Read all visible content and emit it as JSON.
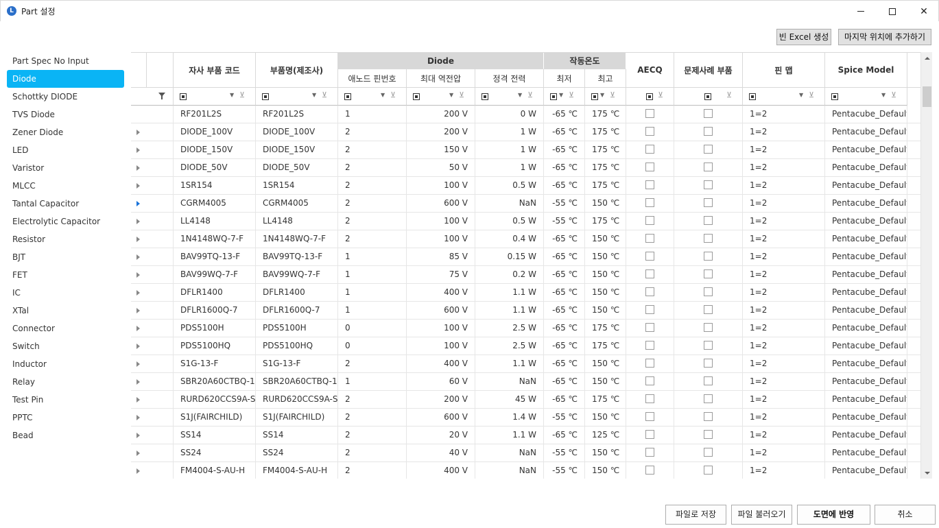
{
  "window": {
    "title": "Part 설정",
    "icon_letter": "L"
  },
  "toolbar": {
    "excel_label": "빈 Excel 생성",
    "add_last_label": "마지막 위치에 추가하기"
  },
  "sidebar": {
    "items": [
      "Part Spec No Input",
      "Diode",
      "Schottky DIODE",
      "TVS Diode",
      "Zener Diode",
      "LED",
      "Varistor",
      "MLCC",
      "Tantal Capacitor",
      "Electrolytic Capacitor",
      "Resistor",
      "BJT",
      "FET",
      "IC",
      "XTal",
      "Connector",
      "Switch",
      "Inductor",
      "Relay",
      "Test Pin",
      "PPTC",
      "Bead"
    ],
    "active": "Diode"
  },
  "grid": {
    "headers": {
      "code": "자사 부품 코드",
      "name": "부품명(제조사)",
      "group_diode": "Diode",
      "anode_pin": "애노드 핀번호",
      "max_rev_v": "최대 역전압",
      "rated_power": "정격 전력",
      "group_temp": "작동온도",
      "temp_min": "최저",
      "temp_max": "최고",
      "aecq": "AECQ",
      "problem": "문제사례 부품",
      "pinmap": "핀 맵",
      "spice": "Spice Model"
    },
    "rows": [
      {
        "code": "RF201L2S",
        "name": "RF201L2S",
        "anode": "1",
        "vr": "200 V",
        "pw": "0 W",
        "tmin": "-65 ℃",
        "tmax": "175 ℃",
        "pin": "1=2",
        "spice": "Pentacube_Default_"
      },
      {
        "code": "DIODE_100V",
        "name": "DIODE_100V",
        "anode": "2",
        "vr": "200 V",
        "pw": "1 W",
        "tmin": "-65 ℃",
        "tmax": "175 ℃",
        "pin": "1=2",
        "spice": "Pentacube_Default_"
      },
      {
        "code": "DIODE_150V",
        "name": "DIODE_150V",
        "anode": "2",
        "vr": "150 V",
        "pw": "1 W",
        "tmin": "-65 ℃",
        "tmax": "175 ℃",
        "pin": "1=2",
        "spice": "Pentacube_Default_"
      },
      {
        "code": "DIODE_50V",
        "name": "DIODE_50V",
        "anode": "2",
        "vr": "50 V",
        "pw": "1 W",
        "tmin": "-65 ℃",
        "tmax": "175 ℃",
        "pin": "1=2",
        "spice": "Pentacube_Default_"
      },
      {
        "code": "1SR154",
        "name": "1SR154",
        "anode": "2",
        "vr": "100 V",
        "pw": "0.5 W",
        "tmin": "-65 ℃",
        "tmax": "175 ℃",
        "pin": "1=2",
        "spice": "Pentacube_Default_"
      },
      {
        "code": "CGRM4005",
        "name": "CGRM4005",
        "anode": "2",
        "vr": "600 V",
        "pw": "NaN",
        "tmin": "-55 ℃",
        "tmax": "150 ℃",
        "pin": "1=2",
        "spice": "Pentacube_Default_"
      },
      {
        "code": "LL4148",
        "name": "LL4148",
        "anode": "2",
        "vr": "100 V",
        "pw": "0.5 W",
        "tmin": "-55 ℃",
        "tmax": "175 ℃",
        "pin": "1=2",
        "spice": "Pentacube_Default_"
      },
      {
        "code": "1N4148WQ-7-F",
        "name": "1N4148WQ-7-F",
        "anode": "2",
        "vr": "100 V",
        "pw": "0.4 W",
        "tmin": "-65 ℃",
        "tmax": "150 ℃",
        "pin": "1=2",
        "spice": "Pentacube_Default_"
      },
      {
        "code": "BAV99TQ-13-F",
        "name": "BAV99TQ-13-F",
        "anode": "1",
        "vr": "85 V",
        "pw": "0.15 W",
        "tmin": "-65 ℃",
        "tmax": "150 ℃",
        "pin": "1=2",
        "spice": "Pentacube_Default_"
      },
      {
        "code": "BAV99WQ-7-F",
        "name": "BAV99WQ-7-F",
        "anode": "1",
        "vr": "75 V",
        "pw": "0.2 W",
        "tmin": "-65 ℃",
        "tmax": "150 ℃",
        "pin": "1=2",
        "spice": "Pentacube_Default_"
      },
      {
        "code": "DFLR1400",
        "name": "DFLR1400",
        "anode": "1",
        "vr": "400 V",
        "pw": "1.1 W",
        "tmin": "-65 ℃",
        "tmax": "150 ℃",
        "pin": "1=2",
        "spice": "Pentacube_Default_"
      },
      {
        "code": "DFLR1600Q-7",
        "name": "DFLR1600Q-7",
        "anode": "1",
        "vr": "600 V",
        "pw": "1.1 W",
        "tmin": "-65 ℃",
        "tmax": "150 ℃",
        "pin": "1=2",
        "spice": "Pentacube_Default_"
      },
      {
        "code": "PDS5100H",
        "name": "PDS5100H",
        "anode": "0",
        "vr": "100 V",
        "pw": "2.5 W",
        "tmin": "-65 ℃",
        "tmax": "175 ℃",
        "pin": "1=2",
        "spice": "Pentacube_Default_"
      },
      {
        "code": "PDS5100HQ",
        "name": "PDS5100HQ",
        "anode": "0",
        "vr": "100 V",
        "pw": "2.5 W",
        "tmin": "-65 ℃",
        "tmax": "175 ℃",
        "pin": "1=2",
        "spice": "Pentacube_Default_"
      },
      {
        "code": "S1G-13-F",
        "name": "S1G-13-F",
        "anode": "2",
        "vr": "400 V",
        "pw": "1.1 W",
        "tmin": "-65 ℃",
        "tmax": "150 ℃",
        "pin": "1=2",
        "spice": "Pentacube_Default_"
      },
      {
        "code": "SBR20A60CTBQ-13",
        "name": "SBR20A60CTBQ-13",
        "anode": "1",
        "vr": "60 V",
        "pw": "NaN",
        "tmin": "-65 ℃",
        "tmax": "150 ℃",
        "pin": "1=2",
        "spice": "Pentacube_Default_"
      },
      {
        "code": "RURD620CCS9A-SE",
        "name": "RURD620CCS9A-SE",
        "anode": "2",
        "vr": "200 V",
        "pw": "45 W",
        "tmin": "-65 ℃",
        "tmax": "175 ℃",
        "pin": "1=2",
        "spice": "Pentacube_Default_"
      },
      {
        "code": "S1J(FAIRCHILD)",
        "name": "S1J(FAIRCHILD)",
        "anode": "2",
        "vr": "600 V",
        "pw": "1.4 W",
        "tmin": "-55 ℃",
        "tmax": "150 ℃",
        "pin": "1=2",
        "spice": "Pentacube_Default_"
      },
      {
        "code": "SS14",
        "name": "SS14",
        "anode": "2",
        "vr": "20 V",
        "pw": "1.1 W",
        "tmin": "-65 ℃",
        "tmax": "125 ℃",
        "pin": "1=2",
        "spice": "Pentacube_Default_"
      },
      {
        "code": "SS24",
        "name": "SS24",
        "anode": "2",
        "vr": "40 V",
        "pw": "NaN",
        "tmin": "-55 ℃",
        "tmax": "150 ℃",
        "pin": "1=2",
        "spice": "Pentacube_Default_"
      },
      {
        "code": "FM4004-S-AU-H",
        "name": "FM4004-S-AU-H",
        "anode": "2",
        "vr": "400 V",
        "pw": "NaN",
        "tmin": "-55 ℃",
        "tmax": "150 ℃",
        "pin": "1=2",
        "spice": "Pentacube_Default_"
      }
    ]
  },
  "footer": {
    "save_label": "파일로 저장",
    "load_label": "파일 불러오기",
    "apply_label": "도면에 반영",
    "cancel_label": "취소"
  },
  "colors": {
    "accent": "#0ab4f5",
    "header_group": "#d8d8d8"
  },
  "icons": {
    "minimize": "minimize-icon",
    "maximize": "maximize-icon",
    "close": "close-icon",
    "filter": "funnel-icon",
    "clear_filter": "filter-clear-icon"
  }
}
